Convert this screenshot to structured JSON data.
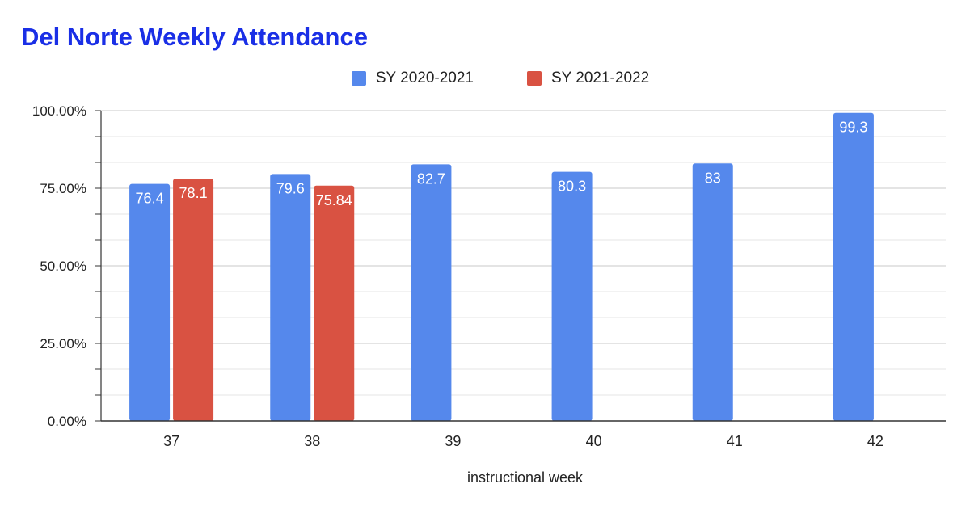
{
  "chart_data": {
    "type": "bar",
    "title": "Del Norte Weekly Attendance",
    "xlabel": "instructional week",
    "ylabel": "",
    "categories": [
      "37",
      "38",
      "39",
      "40",
      "41",
      "42"
    ],
    "ylim": [
      0,
      100
    ],
    "yticks": [
      "0.00%",
      "25.00%",
      "50.00%",
      "75.00%",
      "100.00%"
    ],
    "grid": true,
    "legend_position": "top",
    "series": [
      {
        "name": "SY 2020-2021",
        "color": "#5588ec",
        "values": [
          76.4,
          79.6,
          82.7,
          80.3,
          83,
          99.3
        ],
        "labels": [
          "76.4",
          "79.6",
          "82.7",
          "80.3",
          "83",
          "99.3"
        ]
      },
      {
        "name": "SY 2021-2022",
        "color": "#d95242",
        "values": [
          78.1,
          75.84,
          null,
          null,
          null,
          null
        ],
        "labels": [
          "78.1",
          "75.84",
          "",
          "",
          "",
          ""
        ]
      }
    ]
  }
}
